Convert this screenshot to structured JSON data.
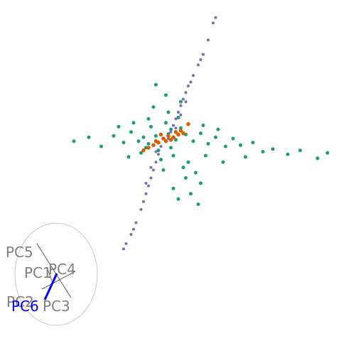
{
  "chart_data": {
    "type": "scatter",
    "title": "",
    "xlabel": "",
    "ylabel": "",
    "grid": false,
    "legend": "none",
    "series": [
      {
        "color": "#1b9e77",
        "points": [
          [
            0.0,
            0.0
          ],
          [
            0.2,
            0.35
          ],
          [
            -0.3,
            0.2
          ],
          [
            0.5,
            -0.1
          ],
          [
            -0.6,
            -0.4
          ],
          [
            0.9,
            0.3
          ],
          [
            -0.8,
            0.1
          ],
          [
            0.3,
            -0.7
          ],
          [
            -0.2,
            -0.9
          ],
          [
            0.7,
            0.8
          ],
          [
            -1.0,
            -0.2
          ],
          [
            1.2,
            -0.2
          ],
          [
            0.1,
            1.2
          ],
          [
            -0.5,
            0.9
          ],
          [
            1.5,
            0.4
          ],
          [
            -1.3,
            0.5
          ],
          [
            0.4,
            -1.3
          ],
          [
            -0.9,
            -1.1
          ],
          [
            1.8,
            -0.4
          ],
          [
            2.1,
            0.1
          ],
          [
            -1.6,
            -0.3
          ],
          [
            0.6,
            1.6
          ],
          [
            -0.1,
            -1.6
          ],
          [
            2.5,
            -0.6
          ],
          [
            2.8,
            0.0
          ],
          [
            3.1,
            -0.5
          ],
          [
            3.6,
            -0.3
          ],
          [
            4.0,
            -1.0
          ],
          [
            4.4,
            -0.8
          ],
          [
            5.0,
            -1.2
          ],
          [
            5.5,
            -0.9
          ],
          [
            6.2,
            -1.5
          ],
          [
            6.6,
            -1.1
          ],
          [
            -2.0,
            0.2
          ],
          [
            -2.5,
            -0.6
          ],
          [
            -3.0,
            0.1
          ],
          [
            -3.6,
            -0.2
          ],
          [
            1.0,
            -1.8
          ],
          [
            0.8,
            -2.2
          ],
          [
            1.3,
            -2.6
          ],
          [
            0.9,
            -3.0
          ],
          [
            1.5,
            -3.4
          ],
          [
            0.4,
            -3.8
          ],
          [
            1.1,
            -4.2
          ],
          [
            0.6,
            -4.6
          ],
          [
            1.4,
            -5.0
          ],
          [
            0.2,
            2.0
          ],
          [
            -0.4,
            2.4
          ],
          [
            0.7,
            2.8
          ],
          [
            0.1,
            3.3
          ],
          [
            -0.6,
            1.5
          ],
          [
            1.6,
            1.0
          ],
          [
            -1.2,
            1.2
          ],
          [
            2.2,
            0.7
          ],
          [
            -1.8,
            0.9
          ],
          [
            0.3,
            0.7
          ],
          [
            -0.7,
            -0.7
          ],
          [
            1.7,
            -1.3
          ],
          [
            -1.4,
            -1.4
          ],
          [
            2.4,
            -1.8
          ],
          [
            3.3,
            -1.4
          ],
          [
            0.0,
            -2.4
          ],
          [
            -0.3,
            4.1
          ]
        ]
      },
      {
        "color": "#7570b3",
        "points": [
          [
            0.2,
            0.0
          ],
          [
            0.3,
            0.5
          ],
          [
            0.4,
            1.0
          ],
          [
            0.5,
            1.5
          ],
          [
            0.6,
            2.0
          ],
          [
            0.7,
            2.5
          ],
          [
            0.8,
            3.0
          ],
          [
            0.9,
            3.5
          ],
          [
            1.0,
            4.0
          ],
          [
            1.2,
            4.8
          ],
          [
            1.4,
            5.6
          ],
          [
            1.6,
            6.4
          ],
          [
            1.8,
            7.5
          ],
          [
            2.0,
            8.8
          ],
          [
            2.1,
            9.2
          ],
          [
            -0.1,
            -0.6
          ],
          [
            -0.2,
            -1.2
          ],
          [
            -0.3,
            -1.8
          ],
          [
            -0.4,
            -2.4
          ],
          [
            -0.5,
            -3.0
          ],
          [
            -0.6,
            -3.6
          ],
          [
            -0.7,
            -4.2
          ],
          [
            -0.8,
            -4.8
          ],
          [
            -0.9,
            -5.4
          ],
          [
            -1.1,
            -6.4
          ],
          [
            -1.3,
            -7.3
          ],
          [
            -1.5,
            -8.0
          ],
          [
            -1.6,
            -8.4
          ],
          [
            0.5,
            0.8
          ],
          [
            0.7,
            1.8
          ],
          [
            0.9,
            2.8
          ],
          [
            1.1,
            4.3
          ],
          [
            -0.3,
            -1.0
          ],
          [
            -0.5,
            -2.2
          ],
          [
            -0.7,
            -3.4
          ],
          [
            1.5,
            6.0
          ],
          [
            -1.2,
            -6.9
          ]
        ]
      },
      {
        "color": "#d95f02",
        "points": [
          [
            0.0,
            0.0
          ],
          [
            0.2,
            0.2
          ],
          [
            0.4,
            0.1
          ],
          [
            0.1,
            -0.2
          ],
          [
            -0.2,
            -0.3
          ],
          [
            0.5,
            0.5
          ],
          [
            -0.4,
            -0.5
          ],
          [
            0.7,
            0.6
          ],
          [
            -0.6,
            -0.7
          ],
          [
            0.3,
            -0.1
          ],
          [
            -0.1,
            0.3
          ],
          [
            0.8,
            0.4
          ],
          [
            -0.8,
            -0.9
          ],
          [
            0.6,
            0.3
          ],
          [
            -0.3,
            -0.2
          ],
          [
            1.0,
            1.1
          ]
        ]
      }
    ],
    "biplot": {
      "labels": [
        "PC5",
        "PC1",
        "PC4",
        "PC2",
        "PC3",
        "PC6"
      ],
      "label_colors": [
        "#808080",
        "#808080",
        "#808080",
        "#808080",
        "#808080",
        "#0000ff"
      ]
    }
  }
}
